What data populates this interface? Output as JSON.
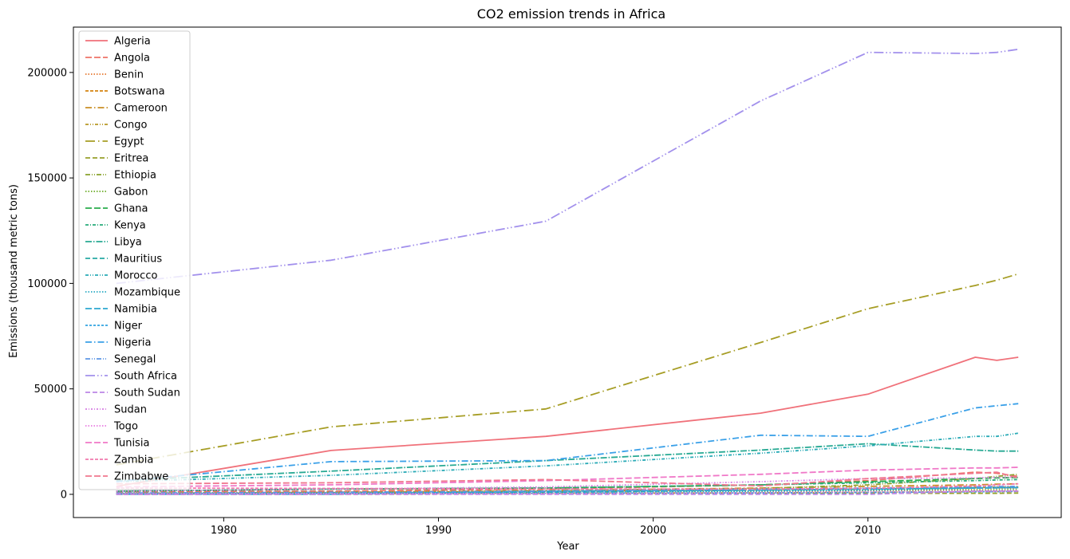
{
  "chart_data": {
    "type": "line",
    "title": "CO2 emission trends in Africa",
    "xlabel": "Year",
    "ylabel": "Emissions (thousand metric tons)",
    "xlim": [
      1973,
      2019
    ],
    "ylim": [
      -11000,
      221500
    ],
    "xticks": [
      1980,
      1990,
      2000,
      2010
    ],
    "yticks": [
      0,
      50000,
      100000,
      150000,
      200000
    ],
    "x": [
      1975,
      1985,
      1995,
      2005,
      2010,
      2015,
      2016,
      2017
    ],
    "legend_position": "upper-left",
    "grid": false,
    "series": [
      {
        "name": "Algeria",
        "color": "#f0717a",
        "dash": "",
        "values": [
          3800,
          20800,
          27500,
          38500,
          47500,
          65000,
          63500,
          65000
        ]
      },
      {
        "name": "Angola",
        "color": "#ee7367",
        "dash": "8,3",
        "values": [
          1200,
          1500,
          2500,
          4500,
          6500,
          10500,
          10000,
          8500
        ]
      },
      {
        "name": "Benin",
        "color": "#e5772f",
        "dash": "1.5,2",
        "values": [
          150,
          250,
          300,
          1000,
          1800,
          2800,
          2900,
          3000
        ]
      },
      {
        "name": "Botswana",
        "color": "#d4830f",
        "dash": "4,2",
        "values": [
          300,
          800,
          1500,
          2200,
          2800,
          3300,
          3400,
          3500
        ]
      },
      {
        "name": "Cameroon",
        "color": "#c98e26",
        "dash": "8,3,1.5,3",
        "values": [
          500,
          1000,
          1800,
          3000,
          3800,
          4500,
          4800,
          5000
        ]
      },
      {
        "name": "Congo",
        "color": "#b89726",
        "dash": "4,2,1,2,1,2",
        "values": [
          200,
          300,
          500,
          700,
          1000,
          1200,
          1300,
          1400
        ]
      },
      {
        "name": "Egypt",
        "color": "#a69d24",
        "dash": "12,4,1.5,4",
        "values": [
          14000,
          32000,
          40500,
          72000,
          88000,
          99000,
          101500,
          104500
        ]
      },
      {
        "name": "Eritrea",
        "color": "#97a12b",
        "dash": "6,3",
        "values": [
          0,
          0,
          200,
          400,
          500,
          500,
          500,
          600
        ]
      },
      {
        "name": "Ethiopia",
        "color": "#8aa32d",
        "dash": "6,2,1,2,1,2",
        "values": [
          500,
          1000,
          1500,
          2800,
          4500,
          7500,
          8500,
          9500
        ]
      },
      {
        "name": "Gabon",
        "color": "#6aab25",
        "dash": "1.5,2",
        "values": [
          500,
          700,
          1000,
          1500,
          1800,
          2000,
          2100,
          2200
        ]
      },
      {
        "name": "Ghana",
        "color": "#2aad4c",
        "dash": "8,3",
        "values": [
          1500,
          2500,
          3000,
          4500,
          6000,
          7500,
          7800,
          8000
        ]
      },
      {
        "name": "Kenya",
        "color": "#28ab7a",
        "dash": "4,2,1,2",
        "values": [
          1500,
          2500,
          3000,
          4500,
          5500,
          6500,
          6800,
          7000
        ]
      },
      {
        "name": "Libya",
        "color": "#27a993",
        "dash": "8,2,1.5,2",
        "values": [
          6500,
          11000,
          16000,
          21000,
          24000,
          21000,
          20500,
          20500
        ]
      },
      {
        "name": "Mauritius",
        "color": "#28a9a4",
        "dash": "6,3",
        "values": [
          200,
          500,
          1000,
          2000,
          2500,
          3000,
          3100,
          3200
        ]
      },
      {
        "name": "Morocco",
        "color": "#29aab6",
        "dash": "4,2,1,2,1,2",
        "values": [
          6000,
          9000,
          13500,
          19500,
          23000,
          27500,
          27500,
          29000
        ]
      },
      {
        "name": "Mozambique",
        "color": "#2aaac4",
        "dash": "1.5,2",
        "values": [
          500,
          700,
          800,
          1500,
          2000,
          3000,
          3100,
          3200
        ]
      },
      {
        "name": "Namibia",
        "color": "#2da7d0",
        "dash": "8,3",
        "values": [
          0,
          0,
          1500,
          2000,
          2500,
          3000,
          3100,
          3200
        ]
      },
      {
        "name": "Niger",
        "color": "#32a4e0",
        "dash": "3,2",
        "values": [
          200,
          400,
          500,
          700,
          900,
          1200,
          1300,
          1400
        ]
      },
      {
        "name": "Nigeria",
        "color": "#3aa0e8",
        "dash": "8,3,1.5,3",
        "values": [
          6000,
          15500,
          16000,
          28000,
          27500,
          41000,
          42000,
          43000
        ]
      },
      {
        "name": "Senegal",
        "color": "#5e97e6",
        "dash": "6,2,1,2,1,2",
        "values": [
          600,
          1000,
          1500,
          2500,
          3000,
          3500,
          3700,
          3800
        ]
      },
      {
        "name": "South Africa",
        "color": "#a290ec",
        "dash": "12,3,1.5,3,1.5,3",
        "values": [
          100000,
          111000,
          129500,
          186500,
          209500,
          209000,
          209500,
          211000
        ]
      },
      {
        "name": "South Sudan",
        "color": "#bc86e6",
        "dash": "6,3",
        "values": [
          0,
          0,
          0,
          0,
          0,
          1500,
          1500,
          1500
        ]
      },
      {
        "name": "Sudan",
        "color": "#d67fe3",
        "dash": "2,2,1,2",
        "values": [
          1500,
          2500,
          3500,
          6000,
          7500,
          7800,
          8000,
          8200
        ]
      },
      {
        "name": "Togo",
        "color": "#e87be0",
        "dash": "1.5,2",
        "values": [
          200,
          300,
          400,
          800,
          1200,
          1500,
          1600,
          1700
        ]
      },
      {
        "name": "Tunisia",
        "color": "#f078c8",
        "dash": "8,3",
        "values": [
          3500,
          4500,
          6500,
          9500,
          11500,
          12500,
          12500,
          12800
        ]
      },
      {
        "name": "Zambia",
        "color": "#f17aad",
        "dash": "4,2",
        "values": [
          3000,
          2800,
          2500,
          2500,
          2800,
          4000,
          4500,
          5000
        ]
      },
      {
        "name": "Zimbabwe",
        "color": "#f0778f",
        "dash": "8,3",
        "values": [
          5000,
          5500,
          7000,
          4000,
          7500,
          10000,
          10500,
          7800
        ]
      }
    ]
  }
}
